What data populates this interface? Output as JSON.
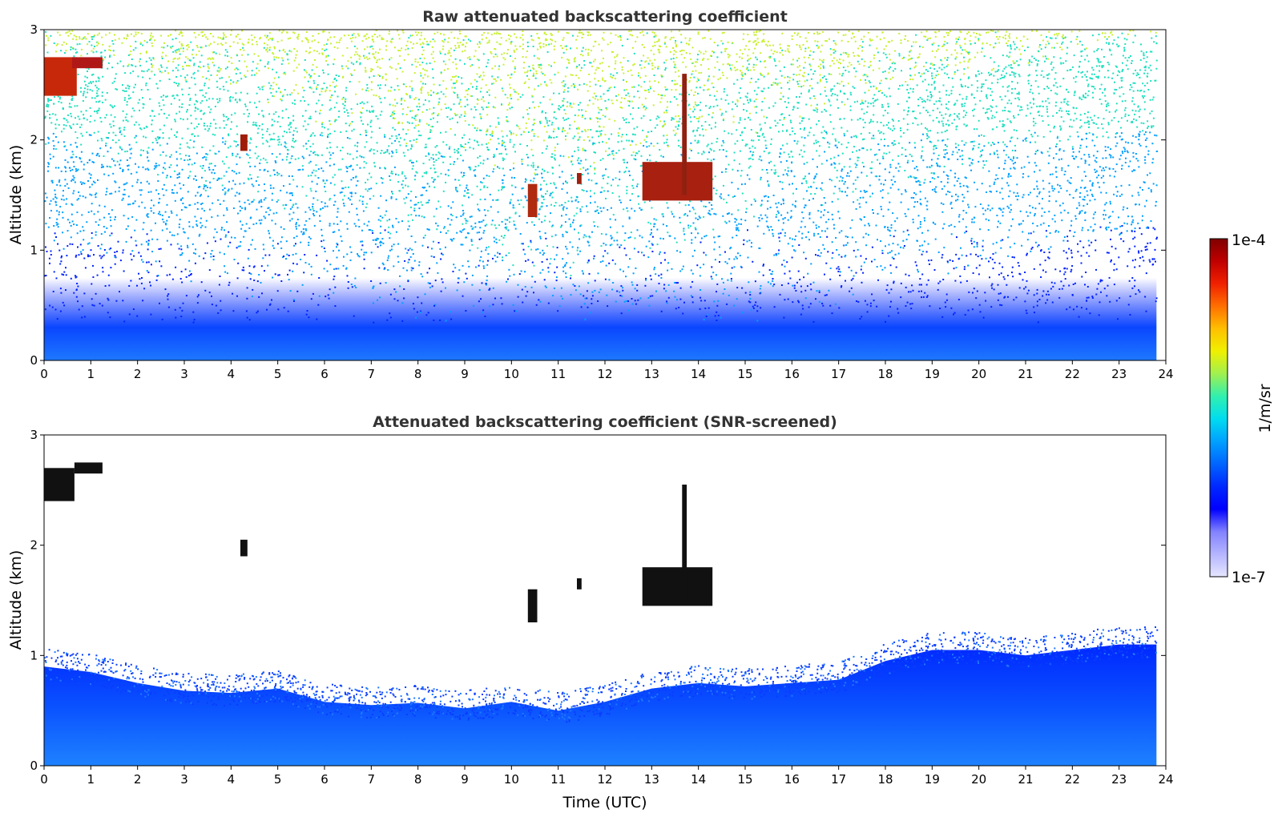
{
  "chart_data": [
    {
      "type": "heatmap",
      "title": "Raw attenuated backscattering coefficient",
      "ylabel": "Altitude (km)",
      "xlabel": "",
      "xlim": [
        0,
        24
      ],
      "ylim": [
        0,
        3
      ],
      "xticks": [
        "0",
        "1",
        "2",
        "3",
        "4",
        "5",
        "6",
        "7",
        "8",
        "9",
        "10",
        "11",
        "12",
        "13",
        "14",
        "15",
        "16",
        "17",
        "18",
        "19",
        "20",
        "21",
        "22",
        "23",
        "24"
      ],
      "yticks": [
        "0",
        "1",
        "2",
        "3"
      ],
      "data_extent_x": [
        0,
        23.8
      ],
      "layers": [
        {
          "kind": "near-surface aerosol",
          "top_km": 0.5,
          "color": "#1a4cff"
        },
        {
          "kind": "noise band",
          "altitude_km": [
            0.5,
            3.0
          ],
          "colors": [
            "#0022ff",
            "#00a0ff",
            "#20e0c0",
            "#c8f030"
          ]
        }
      ],
      "features": [
        {
          "kind": "cloud",
          "time_h": [
            0.0,
            0.7
          ],
          "altitude_km": [
            2.4,
            2.75
          ],
          "color": "#c8280a"
        },
        {
          "kind": "cloud",
          "time_h": [
            0.6,
            1.25
          ],
          "altitude_km": [
            2.65,
            2.75
          ],
          "color": "#b01818"
        },
        {
          "kind": "cloud",
          "time_h": [
            4.2,
            4.35
          ],
          "altitude_km": [
            1.9,
            2.05
          ],
          "color": "#a01c0a"
        },
        {
          "kind": "cloud",
          "time_h": [
            10.35,
            10.55
          ],
          "altitude_km": [
            1.3,
            1.6
          ],
          "color": "#b02a10"
        },
        {
          "kind": "cloud",
          "time_h": [
            11.4,
            11.5
          ],
          "altitude_km": [
            1.6,
            1.7
          ],
          "color": "#a02010"
        },
        {
          "kind": "cloud",
          "time_h": [
            12.8,
            14.3
          ],
          "altitude_km": [
            1.45,
            1.8
          ],
          "color": "#a82010"
        },
        {
          "kind": "cloud",
          "time_h": [
            13.65,
            13.75
          ],
          "altitude_km": [
            1.5,
            2.6
          ],
          "color": "#902010"
        }
      ]
    },
    {
      "type": "heatmap",
      "title": "Attenuated backscattering coefficient (SNR-screened)",
      "ylabel": "Altitude (km)",
      "xlabel": "Time (UTC)",
      "xlim": [
        0,
        24
      ],
      "ylim": [
        0,
        3
      ],
      "xticks": [
        "0",
        "1",
        "2",
        "3",
        "4",
        "5",
        "6",
        "7",
        "8",
        "9",
        "10",
        "11",
        "12",
        "13",
        "14",
        "15",
        "16",
        "17",
        "18",
        "19",
        "20",
        "21",
        "22",
        "23",
        "24"
      ],
      "yticks": [
        "0",
        "1",
        "2",
        "3"
      ],
      "data_extent_x": [
        0,
        23.8
      ],
      "boundary_layer_top_km": [
        [
          0,
          0.9
        ],
        [
          1,
          0.85
        ],
        [
          2,
          0.75
        ],
        [
          3,
          0.68
        ],
        [
          4,
          0.66
        ],
        [
          5,
          0.7
        ],
        [
          6,
          0.58
        ],
        [
          7,
          0.55
        ],
        [
          8,
          0.57
        ],
        [
          9,
          0.52
        ],
        [
          10,
          0.58
        ],
        [
          11,
          0.5
        ],
        [
          12,
          0.58
        ],
        [
          13,
          0.7
        ],
        [
          14,
          0.75
        ],
        [
          15,
          0.72
        ],
        [
          16,
          0.75
        ],
        [
          17,
          0.78
        ],
        [
          18,
          0.95
        ],
        [
          19,
          1.05
        ],
        [
          20,
          1.05
        ],
        [
          21,
          1.0
        ],
        [
          22,
          1.05
        ],
        [
          23,
          1.1
        ],
        [
          23.8,
          1.1
        ]
      ],
      "features": [
        {
          "kind": "cloud",
          "time_h": [
            0.0,
            0.65
          ],
          "altitude_km": [
            2.4,
            2.7
          ],
          "color": "#111111"
        },
        {
          "kind": "cloud",
          "time_h": [
            0.65,
            1.25
          ],
          "altitude_km": [
            2.65,
            2.75
          ],
          "color": "#111111"
        },
        {
          "kind": "cloud",
          "time_h": [
            4.2,
            4.35
          ],
          "altitude_km": [
            1.9,
            2.05
          ],
          "color": "#111111"
        },
        {
          "kind": "cloud",
          "time_h": [
            10.35,
            10.55
          ],
          "altitude_km": [
            1.3,
            1.6
          ],
          "color": "#111111"
        },
        {
          "kind": "cloud",
          "time_h": [
            11.4,
            11.5
          ],
          "altitude_km": [
            1.6,
            1.7
          ],
          "color": "#111111"
        },
        {
          "kind": "cloud",
          "time_h": [
            12.8,
            14.3
          ],
          "altitude_km": [
            1.45,
            1.8
          ],
          "color": "#111111"
        },
        {
          "kind": "cloud",
          "time_h": [
            13.65,
            13.75
          ],
          "altitude_km": [
            1.5,
            2.55
          ],
          "color": "#111111"
        }
      ]
    }
  ],
  "colorbar": {
    "max_label": "1e-4",
    "min_label": "1e-7",
    "unit_label": "1/m/sr",
    "colors": [
      "#e6e6ff",
      "#b4b4ff",
      "#8282ff",
      "#0000ff",
      "#0028ff",
      "#0064ff",
      "#00a0ff",
      "#00dcf0",
      "#30f0b0",
      "#a0f050",
      "#f0f000",
      "#ffc000",
      "#ff7000",
      "#f02000",
      "#c00000",
      "#800000"
    ]
  }
}
